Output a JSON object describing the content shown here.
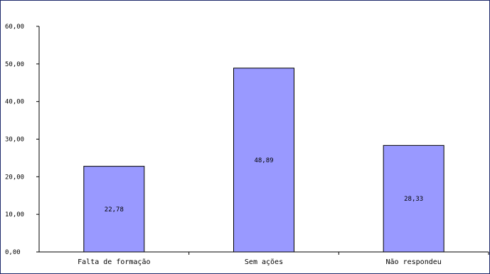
{
  "chart_data": {
    "type": "bar",
    "categories": [
      "Falta de formação",
      "Sem ações",
      "Não respondeu"
    ],
    "values": [
      22.78,
      48.89,
      28.33
    ],
    "value_labels": [
      "22,78",
      "48,89",
      "28,33"
    ],
    "y_ticks": [
      "0,00",
      "10,00",
      "20,00",
      "30,00",
      "40,00",
      "50,00",
      "60,00"
    ],
    "ylim": [
      0,
      60
    ],
    "grid": false,
    "bar_color": "#9999ff",
    "bar_border_color": "#000000"
  }
}
